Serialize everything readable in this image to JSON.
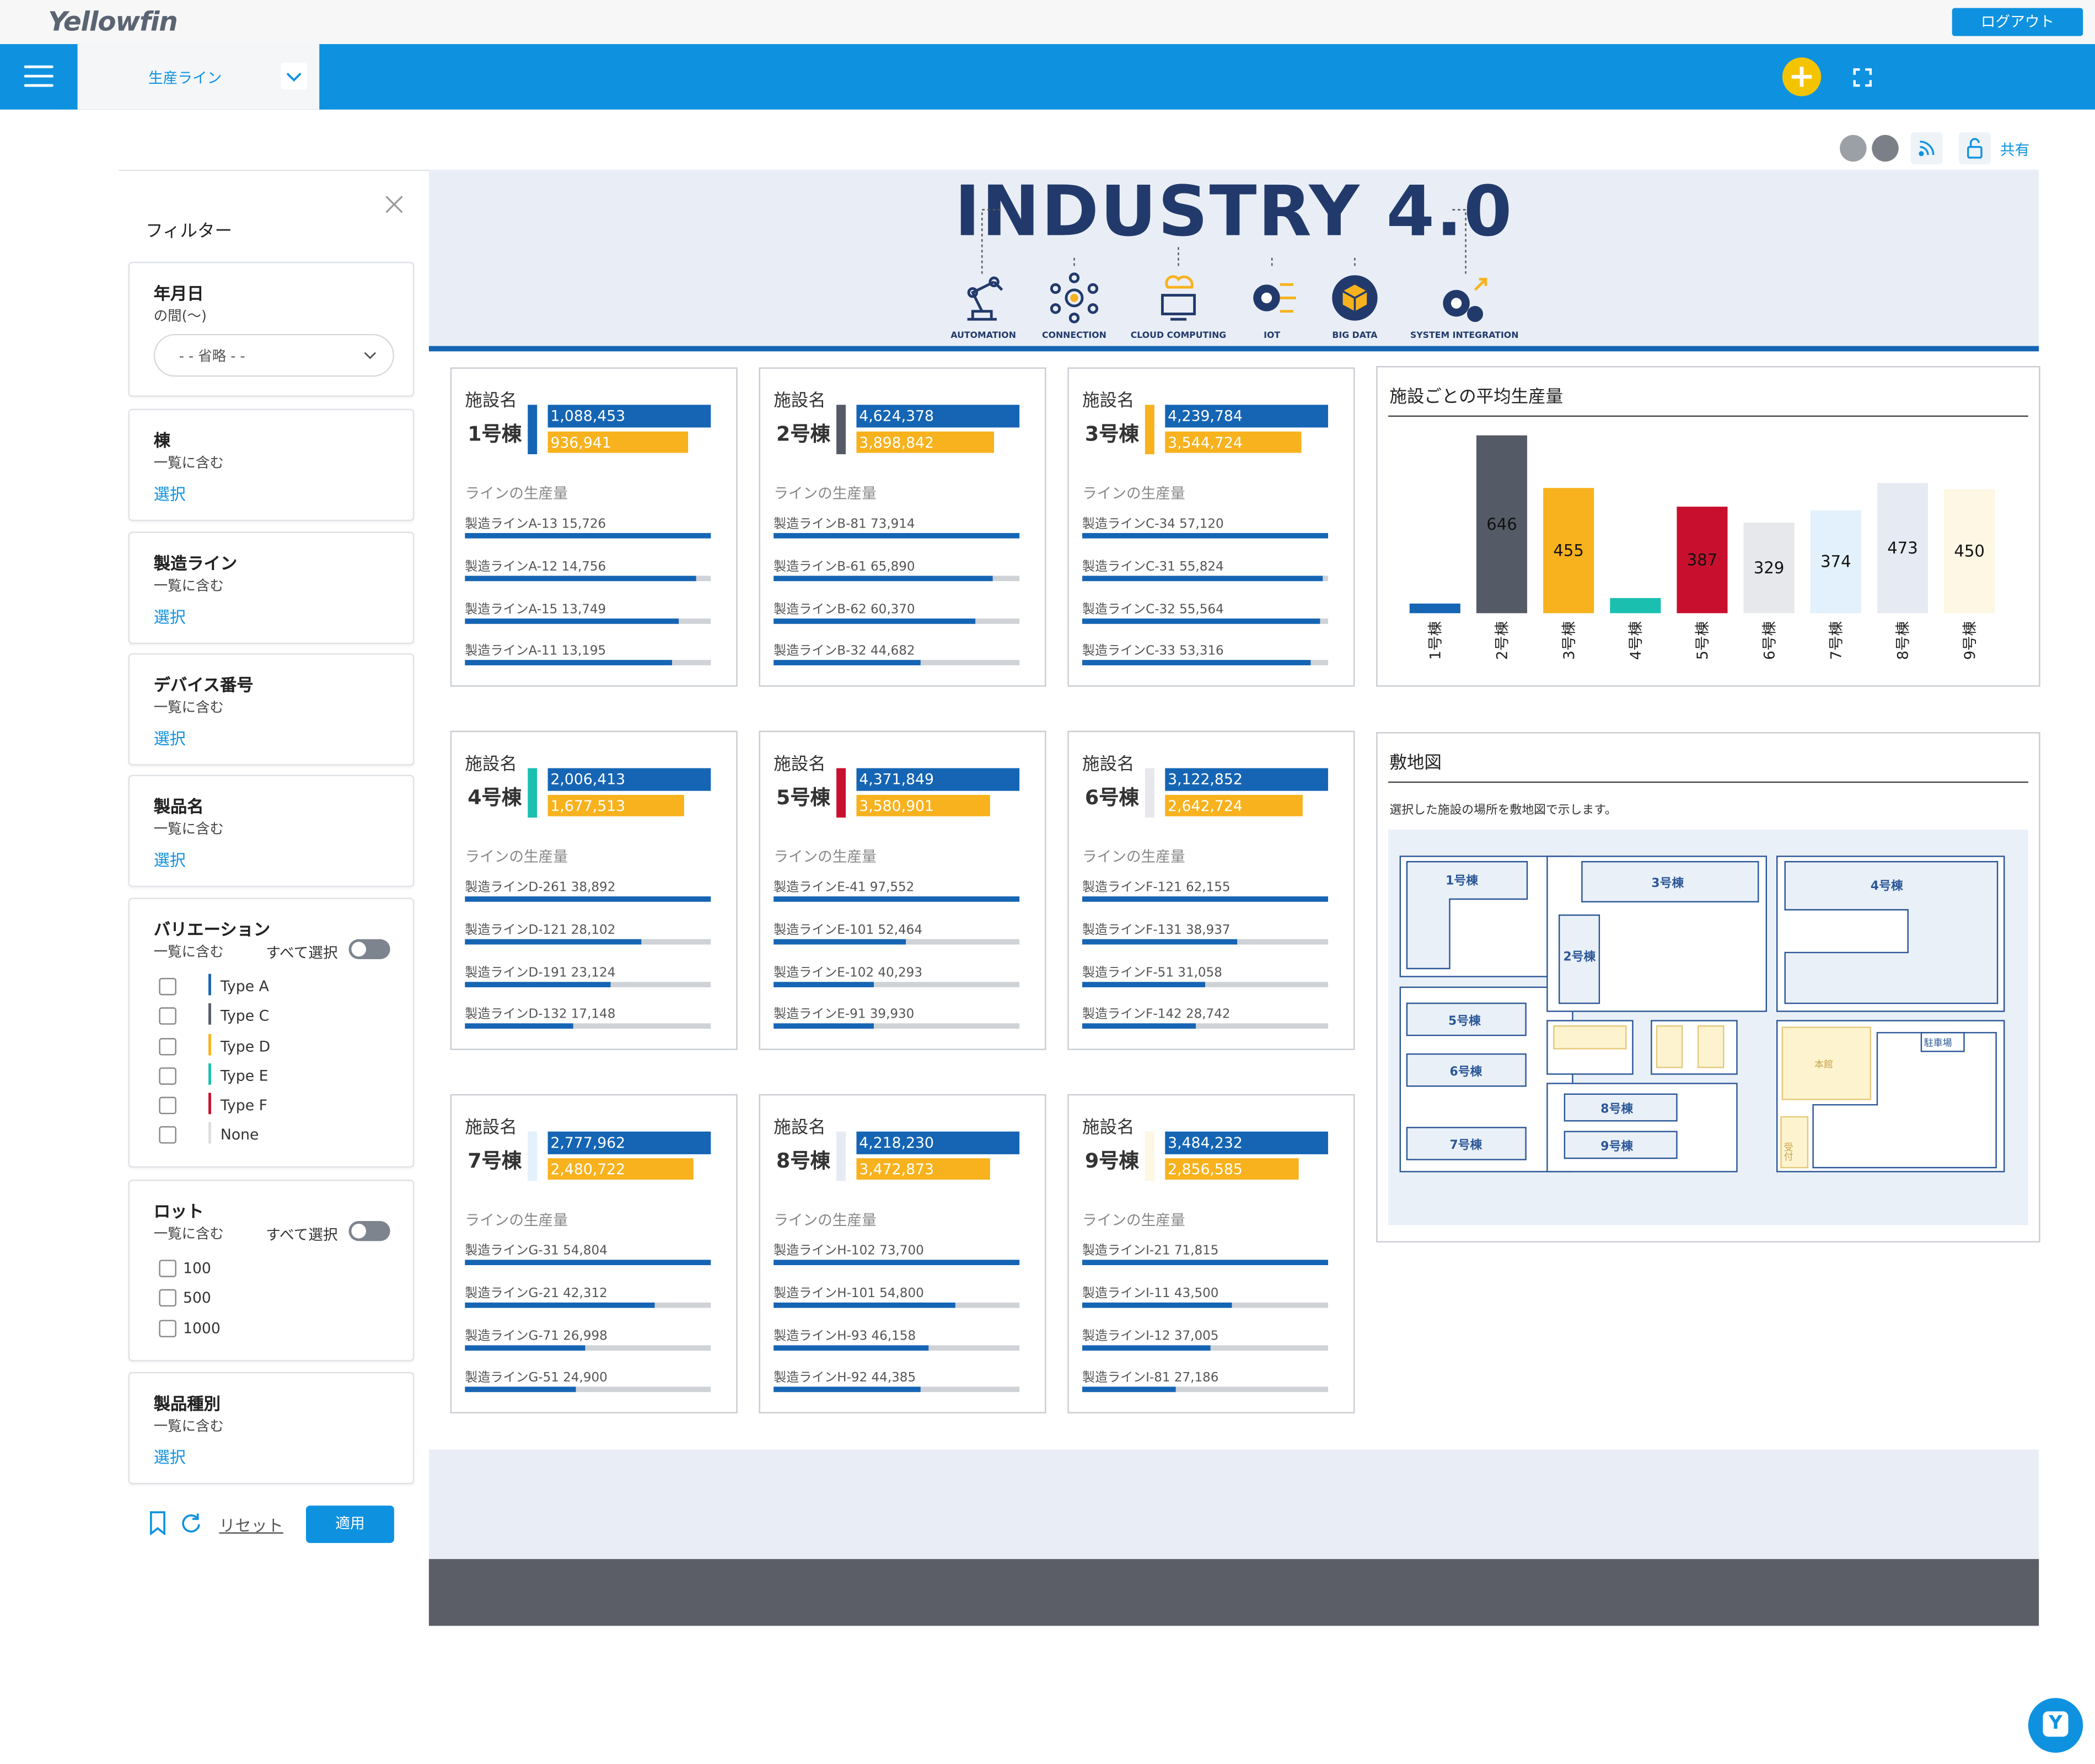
{
  "app": {
    "logo": "Yellowfin",
    "logout_label": "ログアウト",
    "dashboard_selector": "生産ライン",
    "share_label": "共有"
  },
  "colors": {
    "accent": "#0e92e0",
    "bar_blue": "#1565b4",
    "bar_orange": "#f7b21e"
  },
  "filters": {
    "title": "フィルター",
    "date": {
      "title": "年月日",
      "subtitle": "の間(〜)",
      "value": "- - 省略 - -"
    },
    "building": {
      "title": "棟",
      "subtitle": "一覧に含む",
      "link": "選択"
    },
    "line": {
      "title": "製造ライン",
      "subtitle": "一覧に含む",
      "link": "選択"
    },
    "device": {
      "title": "デバイス番号",
      "subtitle": "一覧に含む",
      "link": "選択"
    },
    "product": {
      "title": "製品名",
      "subtitle": "一覧に含む",
      "link": "選択"
    },
    "variation": {
      "title": "バリエーション",
      "subtitle": "一覧に含む",
      "select_all": "すべて選択",
      "options": [
        {
          "label": "Type A",
          "color": "#1565b4"
        },
        {
          "label": "Type C",
          "color": "#555b66"
        },
        {
          "label": "Type D",
          "color": "#f7b21e"
        },
        {
          "label": "Type E",
          "color": "#1bbfb0"
        },
        {
          "label": "Type F",
          "color": "#c8102e"
        },
        {
          "label": "None",
          "color": "#dddddd"
        }
      ]
    },
    "lot": {
      "title": "ロット",
      "subtitle": "一覧に含む",
      "select_all": "すべて選択",
      "options": [
        "100",
        "500",
        "1000"
      ]
    },
    "product_type": {
      "title": "製品種別",
      "subtitle": "一覧に含む",
      "link": "選択"
    },
    "reset_label": "リセット",
    "apply_label": "適用"
  },
  "banner": {
    "title": "INDUSTRY 4.0",
    "icons": [
      {
        "label": "AUTOMATION",
        "icon": "robot-arm-icon"
      },
      {
        "label": "CONNECTION",
        "icon": "network-icon"
      },
      {
        "label": "CLOUD COMPUTING",
        "icon": "cloud-computer-icon"
      },
      {
        "label": "IOT",
        "icon": "gear-circuit-icon"
      },
      {
        "label": "BIG DATA",
        "icon": "cube-icon"
      },
      {
        "label": "SYSTEM INTEGRATION",
        "icon": "gears-icon"
      }
    ]
  },
  "facilities": [
    {
      "header": "施設名",
      "name": "1号棟",
      "color": "#1565b4",
      "total": "1,088,453",
      "total_value": 1088453,
      "sub_value": 936941,
      "sub": "936,941",
      "lines_title": "ラインの生産量",
      "lines": [
        {
          "label": "製造ラインA-13 15,726",
          "ratio": 1.0
        },
        {
          "label": "製造ラインA-12 14,756",
          "ratio": 0.94
        },
        {
          "label": "製造ラインA-15 13,749",
          "ratio": 0.87
        },
        {
          "label": "製造ラインA-11 13,195",
          "ratio": 0.84
        }
      ]
    },
    {
      "header": "施設名",
      "name": "2号棟",
      "color": "#555b66",
      "total": "4,624,378",
      "total_value": 4624378,
      "sub_value": 3898842,
      "sub": "3,898,842",
      "lines_title": "ラインの生産量",
      "lines": [
        {
          "label": "製造ラインB-81 73,914",
          "ratio": 1.0
        },
        {
          "label": "製造ラインB-61 65,890",
          "ratio": 0.89
        },
        {
          "label": "製造ラインB-62 60,370",
          "ratio": 0.82
        },
        {
          "label": "製造ラインB-32 44,682",
          "ratio": 0.6
        }
      ]
    },
    {
      "header": "施設名",
      "name": "3号棟",
      "color": "#f7b21e",
      "total": "4,239,784",
      "total_value": 4239784,
      "sub_value": 3544724,
      "sub": "3,544,724",
      "lines_title": "ラインの生産量",
      "lines": [
        {
          "label": "製造ラインC-34 57,120",
          "ratio": 1.0
        },
        {
          "label": "製造ラインC-31 55,824",
          "ratio": 0.98
        },
        {
          "label": "製造ラインC-32 55,564",
          "ratio": 0.97
        },
        {
          "label": "製造ラインC-33 53,316",
          "ratio": 0.93
        }
      ]
    },
    {
      "header": "施設名",
      "name": "4号棟",
      "color": "#1bbfb0",
      "total": "2,006,413",
      "total_value": 2006413,
      "sub_value": 1677513,
      "sub": "1,677,513",
      "lines_title": "ラインの生産量",
      "lines": [
        {
          "label": "製造ラインD-261 38,892",
          "ratio": 1.0
        },
        {
          "label": "製造ラインD-121 28,102",
          "ratio": 0.72
        },
        {
          "label": "製造ラインD-191 23,124",
          "ratio": 0.59
        },
        {
          "label": "製造ラインD-132 17,148",
          "ratio": 0.44
        }
      ]
    },
    {
      "header": "施設名",
      "name": "5号棟",
      "color": "#c8102e",
      "total": "4,371,849",
      "total_value": 4371849,
      "sub_value": 3580901,
      "sub": "3,580,901",
      "lines_title": "ラインの生産量",
      "lines": [
        {
          "label": "製造ラインE-41 97,552",
          "ratio": 1.0
        },
        {
          "label": "製造ラインE-101 52,464",
          "ratio": 0.54
        },
        {
          "label": "製造ラインE-102 40,293",
          "ratio": 0.41
        },
        {
          "label": "製造ラインE-91 39,930",
          "ratio": 0.41
        }
      ]
    },
    {
      "header": "施設名",
      "name": "6号棟",
      "color": "#e6e8eb",
      "total": "3,122,852",
      "total_value": 3122852,
      "sub_value": 2642724,
      "sub": "2,642,724",
      "lines_title": "ラインの生産量",
      "lines": [
        {
          "label": "製造ラインF-121 62,155",
          "ratio": 1.0
        },
        {
          "label": "製造ラインF-131 38,937",
          "ratio": 0.63
        },
        {
          "label": "製造ラインF-51 31,058",
          "ratio": 0.5
        },
        {
          "label": "製造ラインF-142 28,742",
          "ratio": 0.46
        }
      ]
    },
    {
      "header": "施設名",
      "name": "7号棟",
      "color": "#e3f1fc",
      "total": "2,777,962",
      "total_value": 2777962,
      "sub_value": 2480722,
      "sub": "2,480,722",
      "lines_title": "ラインの生産量",
      "lines": [
        {
          "label": "製造ラインG-31 54,804",
          "ratio": 1.0
        },
        {
          "label": "製造ラインG-21 42,312",
          "ratio": 0.77
        },
        {
          "label": "製造ラインG-71 26,998",
          "ratio": 0.49
        },
        {
          "label": "製造ラインG-51 24,900",
          "ratio": 0.45
        }
      ]
    },
    {
      "header": "施設名",
      "name": "8号棟",
      "color": "#e6ebf3",
      "total": "4,218,230",
      "total_value": 4218230,
      "sub_value": 3472873,
      "sub": "3,472,873",
      "lines_title": "ラインの生産量",
      "lines": [
        {
          "label": "製造ラインH-102 73,700",
          "ratio": 1.0
        },
        {
          "label": "製造ラインH-101 54,800",
          "ratio": 0.74
        },
        {
          "label": "製造ラインH-93 46,158",
          "ratio": 0.63
        },
        {
          "label": "製造ラインH-92 44,385",
          "ratio": 0.6
        }
      ]
    },
    {
      "header": "施設名",
      "name": "9号棟",
      "color": "#fdf7e3",
      "total": "3,484,232",
      "total_value": 3484232,
      "sub_value": 2856585,
      "sub": "2,856,585",
      "lines_title": "ラインの生産量",
      "lines": [
        {
          "label": "製造ラインI-21 71,815",
          "ratio": 1.0
        },
        {
          "label": "製造ラインI-11 43,500",
          "ratio": 0.61
        },
        {
          "label": "製造ラインI-12 37,005",
          "ratio": 0.52
        },
        {
          "label": "製造ラインI-81 27,186",
          "ratio": 0.38
        }
      ]
    }
  ],
  "chart_data": {
    "type": "bar",
    "title": "施設ごとの平均生産量",
    "categories": [
      "1号棟",
      "2号棟",
      "3号棟",
      "4号棟",
      "5号棟",
      "6号棟",
      "7号棟",
      "8号棟",
      "9号棟"
    ],
    "values": [
      35,
      646,
      455,
      55,
      387,
      329,
      374,
      473,
      450
    ],
    "labels": [
      "",
      "646",
      "455",
      "",
      "387",
      "329",
      "374",
      "473",
      "450"
    ],
    "colors": [
      "#1565b4",
      "#555b66",
      "#f7b21e",
      "#1bbfb0",
      "#c8102e",
      "#e6e8eb",
      "#e3f1fc",
      "#e6ebf3",
      "#fdf7e3"
    ],
    "ylim": [
      0,
      660
    ],
    "xlabel": "",
    "ylabel": "",
    "grid": false
  },
  "map": {
    "title": "敷地図",
    "description": "選択した施設の場所を敷地図で示します。",
    "buildings": [
      "1号棟",
      "2号棟",
      "3号棟",
      "4号棟",
      "5号棟",
      "6号棟",
      "7号棟",
      "8号棟",
      "9号棟"
    ],
    "main_building": "本館",
    "parking": "駐車場",
    "reception": "受付"
  }
}
